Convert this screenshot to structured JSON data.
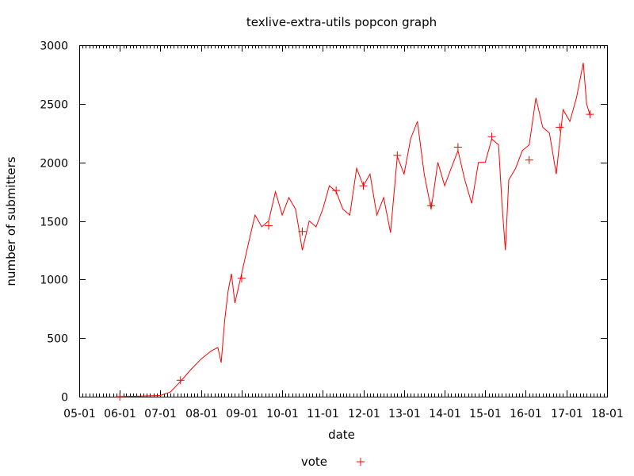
{
  "chart_data": {
    "type": "line",
    "title": "texlive-extra-utils popcon graph",
    "xlabel": "date",
    "ylabel": "number of submitters",
    "x_tick_labels": [
      "05-01",
      "06-01",
      "07-01",
      "08-01",
      "09-01",
      "10-01",
      "11-01",
      "12-01",
      "13-01",
      "14-01",
      "15-01",
      "16-01",
      "17-01",
      "18-01"
    ],
    "y_ticks": [
      0,
      500,
      1000,
      1500,
      2000,
      2500,
      3000
    ],
    "xlim": [
      "2005-01-01",
      "2018-01-01"
    ],
    "ylim": [
      0,
      3000
    ],
    "grid": false,
    "legend_position": "bottom-center",
    "color": "#ff0000",
    "series": [
      {
        "name": "vote",
        "points": [
          [
            "2006-01-01",
            0
          ],
          [
            "2006-07-01",
            5
          ],
          [
            "2007-01-01",
            10
          ],
          [
            "2007-04-01",
            40
          ],
          [
            "2007-07-01",
            130
          ],
          [
            "2007-10-01",
            230
          ],
          [
            "2008-01-01",
            320
          ],
          [
            "2008-04-01",
            390
          ],
          [
            "2008-06-01",
            420
          ],
          [
            "2008-07-01",
            290
          ],
          [
            "2008-08-01",
            650
          ],
          [
            "2008-09-01",
            900
          ],
          [
            "2008-10-01",
            1050
          ],
          [
            "2008-11-01",
            800
          ],
          [
            "2009-01-01",
            1050
          ],
          [
            "2009-03-01",
            1300
          ],
          [
            "2009-05-01",
            1550
          ],
          [
            "2009-07-01",
            1450
          ],
          [
            "2009-09-01",
            1500
          ],
          [
            "2009-11-01",
            1750
          ],
          [
            "2010-01-01",
            1550
          ],
          [
            "2010-03-01",
            1700
          ],
          [
            "2010-05-01",
            1600
          ],
          [
            "2010-07-01",
            1250
          ],
          [
            "2010-09-01",
            1500
          ],
          [
            "2010-11-01",
            1450
          ],
          [
            "2011-01-01",
            1600
          ],
          [
            "2011-03-01",
            1800
          ],
          [
            "2011-05-01",
            1750
          ],
          [
            "2011-07-01",
            1600
          ],
          [
            "2011-09-01",
            1550
          ],
          [
            "2011-11-01",
            1950
          ],
          [
            "2012-01-01",
            1800
          ],
          [
            "2012-03-01",
            1900
          ],
          [
            "2012-05-01",
            1550
          ],
          [
            "2012-07-01",
            1700
          ],
          [
            "2012-09-01",
            1400
          ],
          [
            "2012-11-01",
            2050
          ],
          [
            "2013-01-01",
            1900
          ],
          [
            "2013-03-01",
            2200
          ],
          [
            "2013-05-01",
            2350
          ],
          [
            "2013-07-01",
            1900
          ],
          [
            "2013-09-01",
            1600
          ],
          [
            "2013-11-01",
            2000
          ],
          [
            "2014-01-01",
            1800
          ],
          [
            "2014-03-01",
            1950
          ],
          [
            "2014-05-01",
            2100
          ],
          [
            "2014-07-01",
            1850
          ],
          [
            "2014-09-01",
            1650
          ],
          [
            "2014-11-01",
            2000
          ],
          [
            "2015-01-01",
            2000
          ],
          [
            "2015-03-01",
            2200
          ],
          [
            "2015-05-01",
            2150
          ],
          [
            "2015-06-01",
            1650
          ],
          [
            "2015-07-01",
            1250
          ],
          [
            "2015-08-01",
            1850
          ],
          [
            "2015-10-01",
            1950
          ],
          [
            "2015-12-01",
            2100
          ],
          [
            "2016-02-01",
            2150
          ],
          [
            "2016-04-01",
            2550
          ],
          [
            "2016-06-01",
            2300
          ],
          [
            "2016-08-01",
            2250
          ],
          [
            "2016-10-01",
            1900
          ],
          [
            "2016-12-01",
            2450
          ],
          [
            "2017-02-01",
            2350
          ],
          [
            "2017-04-01",
            2550
          ],
          [
            "2017-06-01",
            2850
          ],
          [
            "2017-07-01",
            2500
          ],
          [
            "2017-08-01",
            2400
          ]
        ],
        "markers": [
          [
            "2006-01-01",
            0
          ],
          [
            "2007-07-01",
            140
          ],
          [
            "2009-01-01",
            1010
          ],
          [
            "2009-09-01",
            1460
          ],
          [
            "2010-07-01",
            1410
          ],
          [
            "2011-05-01",
            1760
          ],
          [
            "2012-01-01",
            1800
          ],
          [
            "2012-11-01",
            2060
          ],
          [
            "2013-09-01",
            1630
          ],
          [
            "2014-05-01",
            2130
          ],
          [
            "2015-03-01",
            2220
          ],
          [
            "2016-02-01",
            2020
          ],
          [
            "2016-11-01",
            2300
          ],
          [
            "2017-08-01",
            2410
          ]
        ]
      }
    ]
  }
}
